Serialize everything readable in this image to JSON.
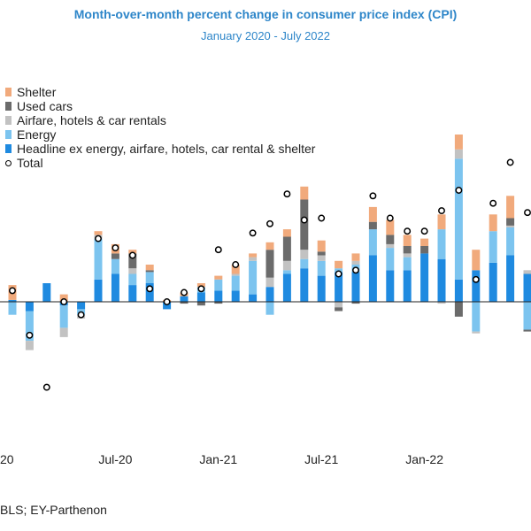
{
  "chart_data": {
    "type": "bar",
    "title": "Month-over-month  percent change in consumer price index (CPI)",
    "subtitle": "January 2020 - July 2022",
    "source": "BLS; EY-Parthenon",
    "xlabel": "",
    "ylabel": "",
    "x_tick_labels": [
      "20",
      "Jul-20",
      "Jan-21",
      "Jul-21",
      "Jan-22"
    ],
    "stacked": true,
    "legend_position": "top-left",
    "grid": false,
    "ylim": [
      -0.5,
      1.15
    ],
    "categories": [
      "Jan-20",
      "Feb-20",
      "Mar-20",
      "Apr-20",
      "May-20",
      "Jun-20",
      "Jul-20",
      "Aug-20",
      "Sep-20",
      "Oct-20",
      "Nov-20",
      "Dec-20",
      "Jan-21",
      "Feb-21",
      "Mar-21",
      "Apr-21",
      "May-21",
      "Jun-21",
      "Jul-21",
      "Aug-21",
      "Sep-21",
      "Oct-21",
      "Nov-21",
      "Dec-21",
      "Jan-22",
      "Feb-22",
      "Mar-22",
      "Apr-22",
      "May-22",
      "Jun-22",
      "Jul-22"
    ],
    "series": [
      {
        "name": "Headline ex energy, airfare, hotels, car rental & shelter",
        "color": "#1f8ae0",
        "values": [
          0.01,
          -0.05,
          0.1,
          -0.02,
          -0.04,
          0.12,
          0.15,
          0.09,
          0.1,
          -0.04,
          0.03,
          0.05,
          0.06,
          0.06,
          0.04,
          0.08,
          0.15,
          0.18,
          0.14,
          0.16,
          0.16,
          0.25,
          0.17,
          0.17,
          0.26,
          0.23,
          0.12,
          0.17,
          0.21,
          0.25,
          0.15
        ]
      },
      {
        "name": "Energy",
        "color": "#7cc4ef",
        "values": [
          -0.07,
          -0.16,
          0.0,
          -0.12,
          -0.03,
          0.22,
          0.08,
          0.06,
          0.06,
          0.0,
          0.0,
          0.03,
          0.06,
          0.08,
          0.18,
          -0.07,
          0.02,
          0.05,
          0.08,
          0.02,
          0.04,
          0.14,
          0.12,
          0.07,
          0.0,
          0.16,
          0.65,
          -0.16,
          0.17,
          0.15,
          -0.15
        ]
      },
      {
        "name": "Airfare, hotels & car rentals",
        "color": "#c2c2c2",
        "values": [
          0.0,
          -0.05,
          0.0,
          -0.05,
          -0.02,
          0.02,
          0.0,
          0.03,
          0.0,
          0.0,
          0.0,
          0.0,
          0.0,
          0.01,
          0.02,
          0.05,
          0.05,
          0.05,
          0.03,
          -0.03,
          0.02,
          0.0,
          0.02,
          0.02,
          0.0,
          -0.01,
          0.05,
          -0.01,
          0.0,
          0.01,
          0.02
        ]
      },
      {
        "name": "Used cars",
        "color": "#6b6b6b",
        "values": [
          0.0,
          0.0,
          0.0,
          0.0,
          0.0,
          0.0,
          0.03,
          0.08,
          0.01,
          0.0,
          -0.01,
          -0.02,
          -0.01,
          0.0,
          0.0,
          0.15,
          0.13,
          0.27,
          0.02,
          -0.02,
          -0.01,
          0.04,
          0.05,
          0.04,
          0.04,
          0.0,
          -0.08,
          0.0,
          0.0,
          0.04,
          -0.01
        ]
      },
      {
        "name": "Shelter",
        "color": "#f1aa7c",
        "values": [
          0.08,
          0.0,
          0.0,
          0.04,
          0.0,
          0.02,
          0.05,
          0.02,
          0.03,
          0.01,
          0.02,
          0.02,
          0.02,
          0.05,
          0.02,
          0.04,
          0.04,
          0.07,
          0.06,
          0.04,
          0.04,
          0.08,
          0.08,
          0.06,
          0.04,
          0.08,
          0.08,
          0.11,
          0.09,
          0.12,
          0.0
        ]
      }
    ],
    "total": {
      "name": "Total",
      "values": [
        0.06,
        -0.18,
        -0.46,
        0.0,
        -0.07,
        0.34,
        0.29,
        0.25,
        0.07,
        0.0,
        0.05,
        0.07,
        0.28,
        0.2,
        0.37,
        0.42,
        0.58,
        0.44,
        0.45,
        0.15,
        0.17,
        0.57,
        0.45,
        0.38,
        0.38,
        0.49,
        0.6,
        0.12,
        0.53,
        0.75,
        0.48
      ]
    }
  },
  "legend_order": [
    {
      "label": "Shelter",
      "color": "#f1aa7c",
      "kind": "box"
    },
    {
      "label": "Used cars",
      "color": "#6b6b6b",
      "kind": "box"
    },
    {
      "label": "Airfare, hotels & car rentals",
      "color": "#c2c2c2",
      "kind": "box"
    },
    {
      "label": "Energy",
      "color": "#7cc4ef",
      "kind": "box"
    },
    {
      "label": "Headline ex energy, airfare, hotels, car rental & shelter",
      "color": "#1f8ae0",
      "kind": "box"
    },
    {
      "label": "Total",
      "color": "#000000",
      "kind": "dot"
    }
  ]
}
